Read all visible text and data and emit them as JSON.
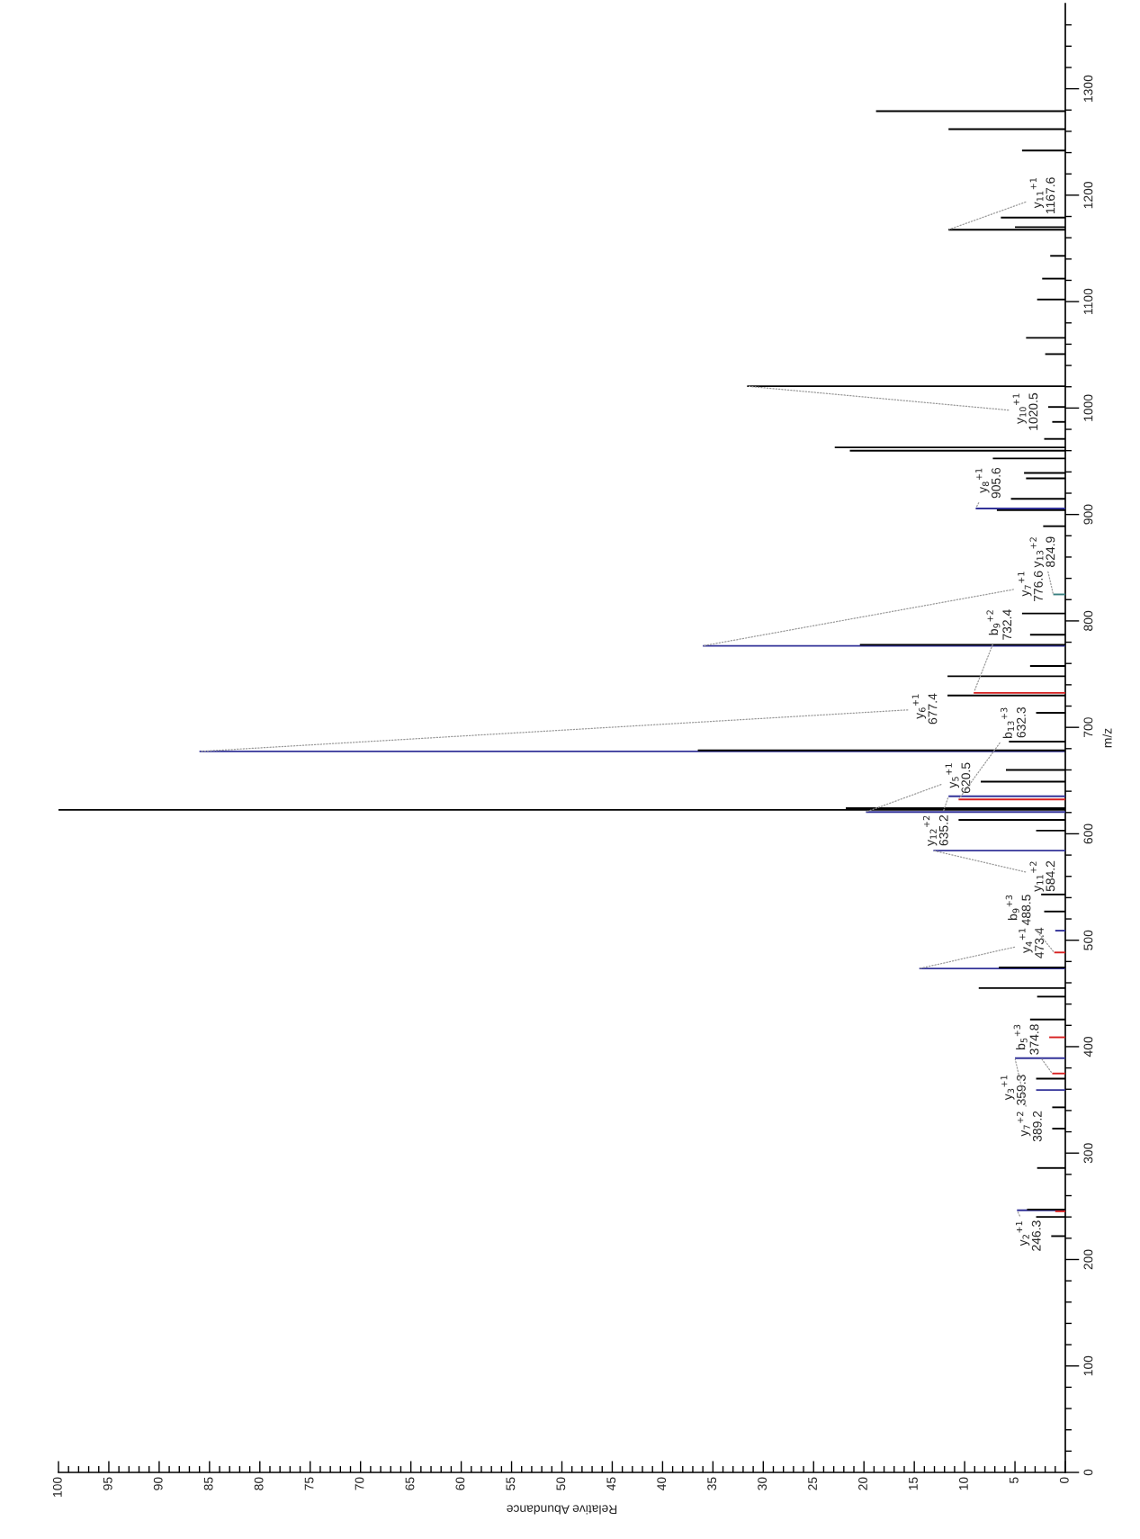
{
  "chart_data": {
    "type": "bar",
    "orientation": "horizontal",
    "xlabel": "Relative Abundance",
    "ylabel": "m/z",
    "x": [
      222,
      240,
      245.3,
      246.3,
      247,
      286,
      323,
      343,
      359.3,
      370,
      374.8,
      389.2,
      408.8,
      425.6,
      447,
      455,
      473.4,
      474.4,
      488.5,
      509,
      527,
      543,
      584.2,
      603,
      613,
      620.5,
      622.5,
      624,
      632.3,
      635.2,
      649,
      660,
      677.4,
      678.4,
      686.6,
      713.7,
      730,
      732.4,
      748,
      757.6,
      776.6,
      777.6,
      787,
      807,
      824.9,
      889,
      904,
      905.6,
      914.7,
      934,
      939,
      952.7,
      960,
      963,
      971,
      987,
      1001,
      1020.5,
      1050.7,
      1066,
      1102,
      1121.6,
      1143,
      1167.6,
      1170,
      1179,
      1242,
      1262,
      1279
    ],
    "values": [
      1.4,
      2.9,
      1.0,
      4.8,
      3.8,
      2.8,
      1.3,
      1.3,
      2.9,
      2.9,
      1.3,
      5.0,
      1.6,
      3.5,
      2.8,
      8.6,
      14.5,
      6.6,
      1.1,
      1.0,
      2.1,
      2.4,
      13.1,
      2.9,
      10.6,
      19.8,
      100,
      21.8,
      10.6,
      11.6,
      8.4,
      5.9,
      86,
      36.5,
      5.6,
      2.9,
      11.7,
      9.1,
      11.7,
      3.5,
      36.0,
      20.4,
      3.5,
      4.3,
      1.2,
      2.2,
      6.8,
      8.9,
      5.4,
      3.9,
      4.1,
      7.2,
      21.4,
      22.9,
      2.1,
      1.3,
      1.7,
      31.6,
      2.0,
      3.9,
      2.8,
      2.3,
      1.5,
      11.6,
      5.0,
      6.4,
      4.3,
      11.6,
      18.8
    ],
    "colors": [
      "#000000",
      "#000000",
      "#d62020",
      "#333399",
      "#000000",
      "#000000",
      "#000000",
      "#000000",
      "#333399",
      "#000000",
      "#d62020",
      "#333399",
      "#d62020",
      "#000000",
      "#000000",
      "#000000",
      "#333399",
      "#000000",
      "#d62020",
      "#333399",
      "#000000",
      "#000000",
      "#333399",
      "#000000",
      "#000000",
      "#333399",
      "#000000",
      "#000000",
      "#d62020",
      "#333399",
      "#000000",
      "#000000",
      "#333399",
      "#000000",
      "#000000",
      "#000000",
      "#000000",
      "#d62020",
      "#000000",
      "#000000",
      "#333399",
      "#000000",
      "#000000",
      "#000000",
      "#3a7f7f",
      "#000000",
      "#000000",
      "#333399",
      "#000000",
      "#000000",
      "#000000",
      "#000000",
      "#000000",
      "#000000",
      "#000000",
      "#000000",
      "#000000",
      "#000000",
      "#000000",
      "#000000",
      "#000000",
      "#000000",
      "#000000",
      "#000000",
      "#000000",
      "#000000",
      "#000000",
      "#000000",
      "#000000"
    ],
    "xlim": [
      100,
      0
    ],
    "xticks": [
      0,
      {
        "value": 1,
        "label": null
      },
      {
        "value": 2,
        "label": null
      },
      {
        "value": 3,
        "label": null
      },
      {
        "value": 4,
        "label": null
      },
      5,
      {
        "value": 6,
        "label": null
      },
      {
        "value": 7,
        "label": null
      },
      {
        "value": 8,
        "label": null
      },
      {
        "value": 9,
        "label": null
      },
      10,
      {
        "value": 11,
        "label": null
      },
      {
        "value": 12,
        "label": null
      },
      {
        "value": 13,
        "label": null
      },
      {
        "value": 14,
        "label": null
      },
      15,
      {
        "value": 16,
        "label": null
      },
      {
        "value": 17,
        "label": null
      },
      {
        "value": 18,
        "label": null
      },
      {
        "value": 19,
        "label": null
      },
      20,
      {
        "value": 21,
        "label": null
      },
      {
        "value": 22,
        "label": null
      },
      {
        "value": 23,
        "label": null
      },
      {
        "value": 24,
        "label": null
      },
      25,
      {
        "value": 26,
        "label": null
      },
      {
        "value": 27,
        "label": null
      },
      {
        "value": 28,
        "label": null
      },
      {
        "value": 29,
        "label": null
      },
      30,
      {
        "value": 31,
        "label": null
      },
      {
        "value": 32,
        "label": null
      },
      {
        "value": 33,
        "label": null
      },
      {
        "value": 34,
        "label": null
      },
      35,
      {
        "value": 36,
        "label": null
      },
      {
        "value": 37,
        "label": null
      },
      {
        "value": 38,
        "label": null
      },
      {
        "value": 39,
        "label": null
      },
      40,
      {
        "value": 41,
        "label": null
      },
      {
        "value": 42,
        "label": null
      },
      {
        "value": 43,
        "label": null
      },
      {
        "value": 44,
        "label": null
      },
      45,
      {
        "value": 46,
        "label": null
      },
      {
        "value": 47,
        "label": null
      },
      {
        "value": 48,
        "label": null
      },
      {
        "value": 49,
        "label": null
      },
      50,
      {
        "value": 51,
        "label": null
      },
      {
        "value": 52,
        "label": null
      },
      {
        "value": 53,
        "label": null
      },
      {
        "value": 54,
        "label": null
      },
      55,
      {
        "value": 56,
        "label": null
      },
      {
        "value": 57,
        "label": null
      },
      {
        "value": 58,
        "label": null
      },
      {
        "value": 59,
        "label": null
      },
      60,
      {
        "value": 61,
        "label": null
      },
      {
        "value": 62,
        "label": null
      },
      {
        "value": 63,
        "label": null
      },
      {
        "value": 64,
        "label": null
      },
      65,
      {
        "value": 66,
        "label": null
      },
      {
        "value": 67,
        "label": null
      },
      {
        "value": 68,
        "label": null
      },
      {
        "value": 69,
        "label": null
      },
      70,
      {
        "value": 71,
        "label": null
      },
      {
        "value": 72,
        "label": null
      },
      {
        "value": 73,
        "label": null
      },
      {
        "value": 74,
        "label": null
      },
      75,
      {
        "value": 76,
        "label": null
      },
      {
        "value": 77,
        "label": null
      },
      {
        "value": 78,
        "label": null
      },
      {
        "value": 79,
        "label": null
      },
      80,
      {
        "value": 81,
        "label": null
      },
      {
        "value": 82,
        "label": null
      },
      {
        "value": 83,
        "label": null
      },
      {
        "value": 84,
        "label": null
      },
      85,
      {
        "value": 86,
        "label": null
      },
      {
        "value": 87,
        "label": null
      },
      {
        "value": 88,
        "label": null
      },
      {
        "value": 89,
        "label": null
      },
      90,
      {
        "value": 91,
        "label": null
      },
      {
        "value": 92,
        "label": null
      },
      {
        "value": 93,
        "label": null
      },
      {
        "value": 94,
        "label": null
      },
      95,
      {
        "value": 96,
        "label": null
      },
      {
        "value": 97,
        "label": null
      },
      {
        "value": 98,
        "label": null
      },
      {
        "value": 99,
        "label": null
      },
      100
    ],
    "ylim": [
      0,
      1380
    ],
    "yticks": [
      0,
      {
        "value": 20,
        "label": null
      },
      {
        "value": 40,
        "label": null
      },
      {
        "value": 60,
        "label": null
      },
      {
        "value": 80,
        "label": null
      },
      100,
      {
        "value": 120,
        "label": null
      },
      {
        "value": 140,
        "label": null
      },
      {
        "value": 160,
        "label": null
      },
      {
        "value": 180,
        "label": null
      },
      200,
      {
        "value": 220,
        "label": null
      },
      {
        "value": 240,
        "label": null
      },
      {
        "value": 260,
        "label": null
      },
      {
        "value": 280,
        "label": null
      },
      300,
      {
        "value": 320,
        "label": null
      },
      {
        "value": 340,
        "label": null
      },
      {
        "value": 360,
        "label": null
      },
      {
        "value": 380,
        "label": null
      },
      400,
      {
        "value": 420,
        "label": null
      },
      {
        "value": 440,
        "label": null
      },
      {
        "value": 460,
        "label": null
      },
      {
        "value": 480,
        "label": null
      },
      500,
      {
        "value": 520,
        "label": null
      },
      {
        "value": 540,
        "label": null
      },
      {
        "value": 560,
        "label": null
      },
      {
        "value": 580,
        "label": null
      },
      600,
      {
        "value": 620,
        "label": null
      },
      {
        "value": 640,
        "label": null
      },
      {
        "value": 660,
        "label": null
      },
      {
        "value": 680,
        "label": null
      },
      700,
      {
        "value": 720,
        "label": null
      },
      {
        "value": 740,
        "label": null
      },
      {
        "value": 760,
        "label": null
      },
      {
        "value": 780,
        "label": null
      },
      800,
      {
        "value": 820,
        "label": null
      },
      {
        "value": 840,
        "label": null
      },
      {
        "value": 860,
        "label": null
      },
      {
        "value": 880,
        "label": null
      },
      900,
      {
        "value": 920,
        "label": null
      },
      {
        "value": 940,
        "label": null
      },
      {
        "value": 960,
        "label": null
      },
      {
        "value": 980,
        "label": null
      },
      1000,
      {
        "value": 1020,
        "label": null
      },
      {
        "value": 1040,
        "label": null
      },
      {
        "value": 1060,
        "label": null
      },
      {
        "value": 1080,
        "label": null
      },
      1100,
      {
        "value": 1120,
        "label": null
      },
      {
        "value": 1140,
        "label": null
      },
      {
        "value": 1160,
        "label": null
      },
      {
        "value": 1180,
        "label": null
      },
      1200,
      {
        "value": 1220,
        "label": null
      },
      {
        "value": 1240,
        "label": null
      },
      {
        "value": 1260,
        "label": null
      },
      {
        "value": 1280,
        "label": null
      },
      1300,
      {
        "value": 1320,
        "label": null
      },
      {
        "value": 1340,
        "label": null
      },
      {
        "value": 1360,
        "label": null
      }
    ],
    "annotations": [
      {
        "text": "y$_{2}$$^{+1}$\n246.3",
        "x": 4.8,
        "y": 246.3
      },
      {
        "text": "y$_{3}$$^{+1}$\n359.3",
        "x": 2.9,
        "y": 359.3
      },
      {
        "text": "b$_{5}$$^{+3}$\n374.8",
        "x": 1.3,
        "y": 374.8
      },
      {
        "text": "y$_{7}$$^{+2}$\n389.2",
        "x": 5.0,
        "y": 389.2
      },
      {
        "text": "y$_{4}$$^{+1}$\n473.4",
        "x": 14.5,
        "y": 473.4
      },
      {
        "text": "b$_{9}$$^{+3}$\n488.5",
        "x": 1.1,
        "y": 488.5
      },
      {
        "text": "y$_{11}$$^{+2}$\n584.2",
        "x": 13.1,
        "y": 584.2
      },
      {
        "text": "y$_{5}$$^{+1}$\n620.5",
        "x": 19.8,
        "y": 620.5
      },
      {
        "text": "b$_{13}$$^{+3}$\n632.3",
        "x": 10.6,
        "y": 632.3
      },
      {
        "text": "y$_{12}$$^{+2}$\n635.2",
        "x": 11.6,
        "y": 635.2
      },
      {
        "text": "y$_{6}$$^{+1}$\n677.4",
        "x": 86,
        "y": 677.4
      },
      {
        "text": "b$_{9}$$^{+2}$\n732.4",
        "x": 9.1,
        "y": 732.4
      },
      {
        "text": "y$_{7}$$^{+1}$\n776.6",
        "x": 36.0,
        "y": 776.6
      },
      {
        "text": "y$_{13}$$^{+2}$\n824.9",
        "x": 1.2,
        "y": 824.9
      },
      {
        "text": "y$_{8}$$^{+1}$\n905.6",
        "x": 8.9,
        "y": 905.6
      },
      {
        "text": "y$_{10}$$^{+1}$\n1020.5",
        "x": 31.6,
        "y": 1020.5
      },
      {
        "text": "y$_{11}$$^{+1}$\n1167.6",
        "x": 11.6,
        "y": 1167.6
      }
    ]
  }
}
